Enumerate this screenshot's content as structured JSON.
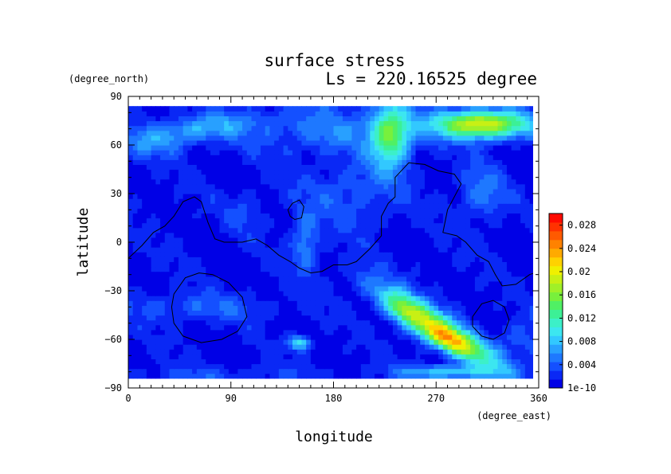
{
  "chart_data": {
    "type": "heatmap",
    "title": "surface stress",
    "subtitle": "Ls = 220.16525 degree",
    "xlabel": "longitude",
    "ylabel": "latitude",
    "x_units": "(degree_east)",
    "y_units": "(degree_north)",
    "xlim": [
      0,
      360
    ],
    "ylim": [
      -90,
      90
    ],
    "x_ticks": [
      "0",
      "90",
      "180",
      "270",
      "360"
    ],
    "y_ticks": [
      "90",
      "60",
      "30",
      "0",
      "−30",
      "−60",
      "−90"
    ],
    "colorbar": {
      "range": [
        0,
        0.03
      ],
      "tick_values": [
        1e-10,
        0.004,
        0.008,
        0.012,
        0.016,
        0.02,
        0.024,
        0.028
      ],
      "tick_labels": [
        "1e-10",
        "0.004",
        "0.008",
        "0.012",
        "0.016",
        "0.02",
        "0.024",
        "0.028"
      ],
      "colors": [
        "#0000e6",
        "#0a28f5",
        "#1450ff",
        "#1e78ff",
        "#28a0ff",
        "#32c8ff",
        "#3ce6f0",
        "#3cf0c8",
        "#3cf096",
        "#50f064",
        "#78f03c",
        "#a0f028",
        "#c8f014",
        "#f0f000",
        "#ffd200",
        "#ffaa00",
        "#ff8200",
        "#ff5a00",
        "#ff3200",
        "#ff0a00"
      ]
    },
    "background": 0.0012,
    "features": [
      {
        "lon": 270,
        "lat": -52,
        "slon": 40,
        "slat": 7,
        "rot": -24,
        "amp": 0.015
      },
      {
        "lon": 280,
        "lat": -60,
        "slon": 20,
        "slat": 5,
        "rot": -15,
        "amp": 0.009
      },
      {
        "lon": 240,
        "lat": -42,
        "slon": 12,
        "slat": 5,
        "rot": -20,
        "amp": 0.006
      },
      {
        "lon": 310,
        "lat": 73,
        "slon": 30,
        "slat": 6,
        "rot": 0,
        "amp": 0.019
      },
      {
        "lon": 230,
        "lat": 66,
        "slon": 12,
        "slat": 14,
        "rot": 0,
        "amp": 0.013
      },
      {
        "lon": 60,
        "lat": 70,
        "slon": 35,
        "slat": 6,
        "rot": 5,
        "amp": 0.006
      },
      {
        "lon": 175,
        "lat": 70,
        "slon": 50,
        "slat": 10,
        "rot": 0,
        "amp": 0.004
      },
      {
        "lon": 280,
        "lat": -80,
        "slon": 30,
        "slat": 3,
        "rot": 0,
        "amp": 0.008
      },
      {
        "lon": 150,
        "lat": -62,
        "slon": 7,
        "slat": 3,
        "rot": 0,
        "amp": 0.009
      },
      {
        "lon": 155,
        "lat": 0,
        "slon": 8,
        "slat": 12,
        "rot": 0,
        "amp": 0.005
      },
      {
        "lon": 195,
        "lat": 30,
        "slon": 30,
        "slat": 15,
        "rot": 0,
        "amp": 0.003
      },
      {
        "lon": 100,
        "lat": 20,
        "slon": 12,
        "slat": 10,
        "rot": 0,
        "amp": 0.002
      },
      {
        "lon": 310,
        "lat": 30,
        "slon": 15,
        "slat": 12,
        "rot": 0,
        "amp": 0.004
      },
      {
        "lon": 60,
        "lat": -40,
        "slon": 50,
        "slat": 6,
        "rot": 0,
        "amp": 0.003
      },
      {
        "lon": 80,
        "lat": -82,
        "slon": 60,
        "slat": 4,
        "rot": 0,
        "amp": 0.002
      },
      {
        "lon": 20,
        "lat": 60,
        "slon": 20,
        "slat": 6,
        "rot": 0,
        "amp": 0.003
      },
      {
        "lon": 345,
        "lat": -60,
        "slon": 15,
        "slat": 10,
        "rot": 0,
        "amp": 0.003
      }
    ],
    "contours": [
      [
        [
          0,
          -10
        ],
        [
          12,
          -2
        ],
        [
          22,
          6
        ],
        [
          32,
          10
        ],
        [
          40,
          16
        ],
        [
          48,
          25
        ],
        [
          58,
          28
        ],
        [
          64,
          25
        ],
        [
          70,
          12
        ],
        [
          76,
          2
        ],
        [
          84,
          0
        ],
        [
          100,
          0
        ],
        [
          112,
          2
        ],
        [
          122,
          -2
        ],
        [
          132,
          -8
        ],
        [
          142,
          -12
        ],
        [
          150,
          -16
        ],
        [
          160,
          -19
        ],
        [
          170,
          -18
        ],
        [
          180,
          -14
        ],
        [
          192,
          -14
        ],
        [
          200,
          -12
        ],
        [
          212,
          -4
        ],
        [
          222,
          4
        ],
        [
          222,
          16
        ],
        [
          228,
          24
        ],
        [
          234,
          28
        ],
        [
          234,
          40
        ],
        [
          246,
          49
        ],
        [
          260,
          48
        ],
        [
          272,
          44
        ],
        [
          286,
          42
        ],
        [
          292,
          36
        ],
        [
          280,
          20
        ],
        [
          276,
          6
        ],
        [
          288,
          4
        ],
        [
          296,
          0
        ],
        [
          306,
          -8
        ],
        [
          316,
          -12
        ],
        [
          322,
          -20
        ],
        [
          328,
          -27
        ],
        [
          340,
          -26
        ],
        [
          352,
          -20
        ],
        [
          360,
          -18
        ]
      ],
      [
        [
          140,
          20
        ],
        [
          144,
          24
        ],
        [
          150,
          26
        ],
        [
          154,
          22
        ],
        [
          152,
          15
        ],
        [
          146,
          14
        ],
        [
          142,
          16
        ],
        [
          140,
          20
        ]
      ],
      [
        [
          40,
          -32
        ],
        [
          50,
          -22
        ],
        [
          62,
          -19
        ],
        [
          74,
          -20
        ],
        [
          88,
          -25
        ],
        [
          100,
          -34
        ],
        [
          104,
          -46
        ],
        [
          96,
          -55
        ],
        [
          82,
          -60
        ],
        [
          64,
          -62
        ],
        [
          48,
          -58
        ],
        [
          40,
          -50
        ],
        [
          38,
          -40
        ],
        [
          40,
          -32
        ]
      ],
      [
        [
          302,
          -46
        ],
        [
          310,
          -38
        ],
        [
          320,
          -36
        ],
        [
          330,
          -40
        ],
        [
          334,
          -48
        ],
        [
          330,
          -56
        ],
        [
          320,
          -60
        ],
        [
          310,
          -58
        ],
        [
          302,
          -52
        ],
        [
          302,
          -46
        ]
      ]
    ]
  }
}
